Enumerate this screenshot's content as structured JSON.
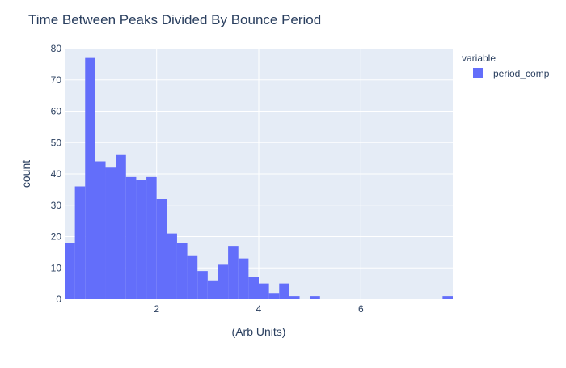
{
  "chart_data": {
    "type": "bar",
    "title": "Time Between Peaks Divided By Bounce Period",
    "xlabel": "(Arb Units)",
    "ylabel": "count",
    "legend_title": "variable",
    "legend_position": "top-right",
    "grid": true,
    "xlim": [
      0.2,
      7.8
    ],
    "ylim": [
      0,
      80
    ],
    "x_ticks": [
      2,
      4,
      6
    ],
    "y_ticks": [
      0,
      10,
      20,
      30,
      40,
      50,
      60,
      70,
      80
    ],
    "bin_width": 0.2,
    "bin_starts": [
      0.2,
      0.4,
      0.6,
      0.8,
      1.0,
      1.2,
      1.4,
      1.6,
      1.8,
      2.0,
      2.2,
      2.4,
      2.6,
      2.8,
      3.0,
      3.2,
      3.4,
      3.6,
      3.8,
      4.0,
      4.2,
      4.4,
      4.6,
      4.8,
      5.0,
      5.2,
      5.4,
      5.6,
      5.8,
      6.0,
      6.2,
      6.4,
      6.6,
      6.8,
      7.0,
      7.2,
      7.4,
      7.6
    ],
    "series": [
      {
        "name": "period_comp",
        "color": "#636efa",
        "values": [
          18,
          36,
          77,
          44,
          42,
          46,
          39,
          38,
          39,
          32,
          21,
          18,
          14,
          9,
          6,
          11,
          17,
          13,
          7,
          5,
          2,
          5,
          1,
          0,
          1,
          0,
          0,
          0,
          0,
          0,
          0,
          0,
          0,
          0,
          0,
          0,
          0,
          1
        ]
      }
    ]
  },
  "colors": {
    "plot_background": "#e5ecf6",
    "grid": "#ffffff",
    "text": "#2a3f5f",
    "tick_text": "#2a3f5f",
    "bar": "#636efa"
  }
}
